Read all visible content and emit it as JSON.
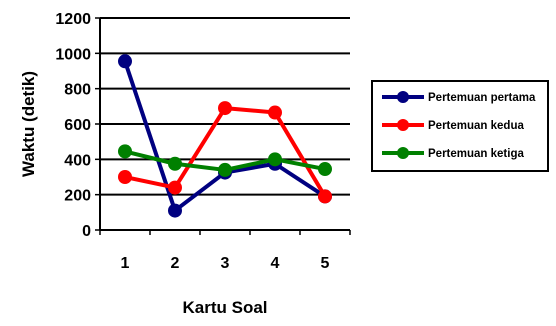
{
  "chart_data": {
    "type": "line",
    "title": "",
    "xlabel": "Kartu Soal",
    "ylabel": "Waktu (detik)",
    "categories": [
      "1",
      "2",
      "3",
      "4",
      "5"
    ],
    "ylim": [
      0,
      1200
    ],
    "yticks": [
      0,
      200,
      400,
      600,
      800,
      1000,
      1200
    ],
    "grid": true,
    "legend_position": "right",
    "series": [
      {
        "name": "Pertemuan pertama",
        "color": "#000080",
        "values": [
          955,
          110,
          325,
          375,
          190
        ]
      },
      {
        "name": "Pertemuan kedua",
        "color": "#ff0000",
        "values": [
          300,
          240,
          690,
          665,
          190
        ]
      },
      {
        "name": "Pertemuan ketiga",
        "color": "#008000",
        "values": [
          445,
          375,
          340,
          400,
          345
        ]
      }
    ]
  }
}
